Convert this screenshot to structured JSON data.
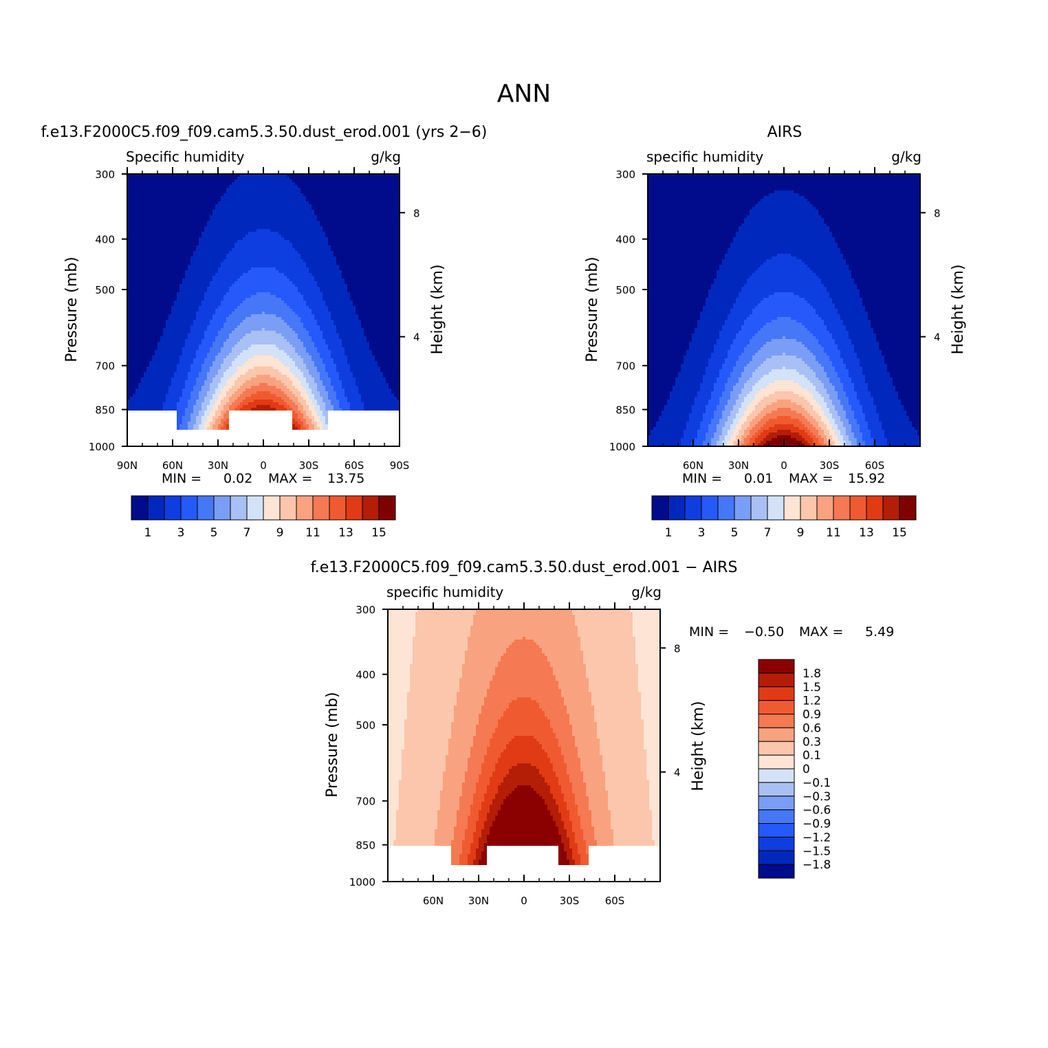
{
  "figure": {
    "title": "ANN",
    "colors": {
      "main_scale": [
        "#000c8b",
        "#0028bd",
        "#0f3ee0",
        "#2659fa",
        "#4577f7",
        "#7a9ef5",
        "#a8c0f4",
        "#d3e2f7",
        "#fde4d4",
        "#fbc6ab",
        "#f9a27f",
        "#f57952",
        "#f05a31",
        "#e03b14",
        "#b41d06",
        "#7f0000"
      ],
      "diff_scale": [
        "#000c8b",
        "#0028bd",
        "#0f3ee0",
        "#2659fa",
        "#4577f7",
        "#7a9ef5",
        "#a8c0f4",
        "#d3e2f7",
        "#fde4d4",
        "#fbc6ab",
        "#f9a27f",
        "#f57952",
        "#f05a31",
        "#e03b14",
        "#b41d06",
        "#8b0000"
      ]
    }
  },
  "chart_data": [
    {
      "id": "model",
      "type": "contour",
      "title": "f.e13.F2000C5.f09_f09.cam5.3.50.dust_erod.001 (yrs 2−6)",
      "variable": "Specific humidity",
      "units": "g/kg",
      "ylabel": "Pressure (mb)",
      "ylabel_right": "Height (km)",
      "x_ticks": [
        "90N",
        "60N",
        "30N",
        "0",
        "30S",
        "60S",
        "90S"
      ],
      "x_tick_values": [
        -90,
        -60,
        -30,
        0,
        30,
        60,
        90
      ],
      "xlim": [
        -90,
        90
      ],
      "y_ticks": [
        300,
        400,
        500,
        700,
        850,
        1000
      ],
      "ylim": [
        300,
        1000
      ],
      "right_ticks": [
        "8",
        "4"
      ],
      "right_tick_pressures": [
        356,
        616
      ],
      "peak": {
        "lat": 0,
        "p": 850
      },
      "peak_value": 13.75,
      "surface_mask_p": 1000,
      "masked_regions": [
        {
          "lat": [
            -90,
            -58
          ],
          "p_from": 850
        },
        {
          "lat": [
            -22,
            20
          ],
          "p_from": 850
        },
        {
          "lat": [
            42,
            90
          ],
          "p_from": 850
        }
      ],
      "min_label": "MIN =",
      "min_value": "0.02",
      "max_label": "MAX =",
      "max_value": "13.75",
      "colorbar": {
        "orientation": "horizontal",
        "levels": [
          1,
          2,
          3,
          4,
          5,
          6,
          7,
          8,
          9,
          10,
          11,
          12,
          13,
          14,
          15
        ],
        "labels": [
          "1",
          "3",
          "5",
          "7",
          "9",
          "11",
          "13",
          "15"
        ]
      }
    },
    {
      "id": "obs",
      "type": "contour",
      "title": "AIRS",
      "variable": "specific humidity",
      "units": "g/kg",
      "ylabel": "Pressure (mb)",
      "ylabel_right": "Height (km)",
      "x_ticks": [
        "60N",
        "30N",
        "0",
        "30S",
        "60S"
      ],
      "x_tick_values": [
        -60,
        -30,
        0,
        30,
        60
      ],
      "xlim": [
        -90,
        90
      ],
      "y_ticks": [
        300,
        400,
        500,
        700,
        850,
        1000
      ],
      "ylim": [
        300,
        1000
      ],
      "right_ticks": [
        "8",
        "4"
      ],
      "right_tick_pressures": [
        356,
        616
      ],
      "peak": {
        "lat": 0,
        "p": 1000
      },
      "peak_value": 15.92,
      "surface_mask_p": 1000,
      "masked_regions": [],
      "min_label": "MIN =",
      "min_value": "0.01",
      "max_label": "MAX =",
      "max_value": "15.92",
      "colorbar": {
        "orientation": "horizontal",
        "levels": [
          1,
          2,
          3,
          4,
          5,
          6,
          7,
          8,
          9,
          10,
          11,
          12,
          13,
          14,
          15
        ],
        "labels": [
          "1",
          "3",
          "5",
          "7",
          "9",
          "11",
          "13",
          "15"
        ]
      }
    },
    {
      "id": "diff",
      "type": "contour",
      "title": "f.e13.F2000C5.f09_f09.cam5.3.50.dust_erod.001 − AIRS",
      "variable": "specific humidity",
      "units": "g/kg",
      "ylabel": "Pressure (mb)",
      "ylabel_right": "Height (km)",
      "x_ticks": [
        "60N",
        "30N",
        "0",
        "30S",
        "60S"
      ],
      "x_tick_values": [
        -60,
        -30,
        0,
        30,
        60
      ],
      "xlim": [
        -90,
        90
      ],
      "y_ticks": [
        300,
        400,
        500,
        700,
        850,
        1000
      ],
      "ylim": [
        300,
        1000
      ],
      "right_ticks": [
        "8",
        "4"
      ],
      "right_tick_pressures": [
        356,
        616
      ],
      "masked_regions": [
        {
          "lat": [
            -90,
            -48
          ],
          "p_from": 850
        },
        {
          "lat": [
            -24,
            22
          ],
          "p_from": 850
        },
        {
          "lat": [
            42,
            90
          ],
          "p_from": 850
        }
      ],
      "surface_mask_p": 925,
      "min_label": "MIN =",
      "min_value": "−0.50",
      "max_label": "MAX =",
      "max_value": "5.49",
      "colorbar": {
        "orientation": "vertical",
        "levels": [
          -1.8,
          -1.5,
          -1.2,
          -0.9,
          -0.6,
          -0.3,
          -0.1,
          0,
          0.1,
          0.3,
          0.6,
          0.9,
          1.2,
          1.5,
          1.8
        ],
        "labels": [
          "1.8",
          "1.5",
          "1.2",
          "0.9",
          "0.6",
          "0.3",
          "0.1",
          "0",
          "−0.1",
          "−0.3",
          "−0.6",
          "−0.9",
          "−1.2",
          "−1.5",
          "−1.8"
        ]
      }
    }
  ]
}
